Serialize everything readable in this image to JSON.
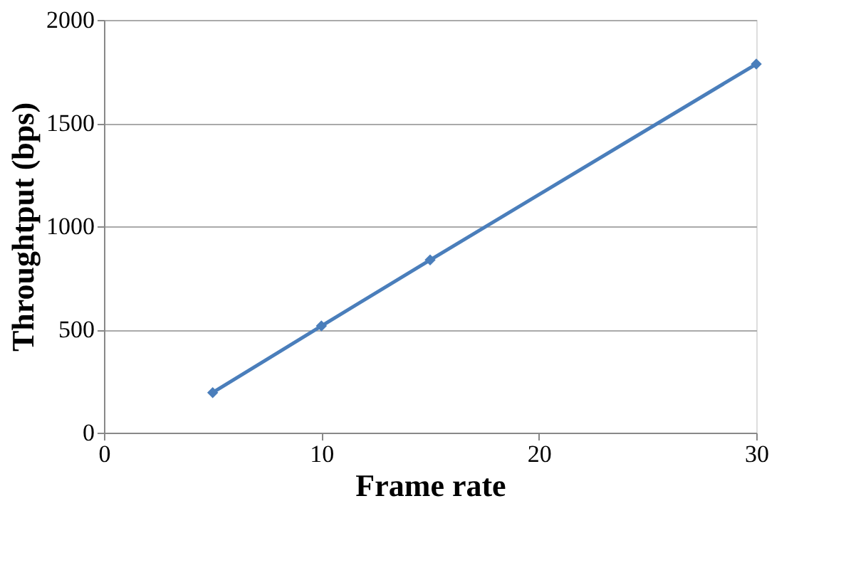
{
  "chart_data": {
    "type": "line",
    "xlabel": "Frame rate",
    "ylabel": "Throughtput (bps)",
    "x": [
      5,
      10,
      15,
      30
    ],
    "series": [
      {
        "color": "#4a7ebb",
        "values": [
          194,
          517,
          837,
          1786
        ]
      }
    ],
    "xlim": [
      0,
      30
    ],
    "xticks": [
      0,
      10,
      20,
      30
    ],
    "ylim": [
      0,
      2000
    ],
    "yticks": [
      0,
      500,
      1000,
      1500,
      2000
    ],
    "grid": "y",
    "marker": "diamond",
    "line_style": "solid",
    "legend": false
  }
}
